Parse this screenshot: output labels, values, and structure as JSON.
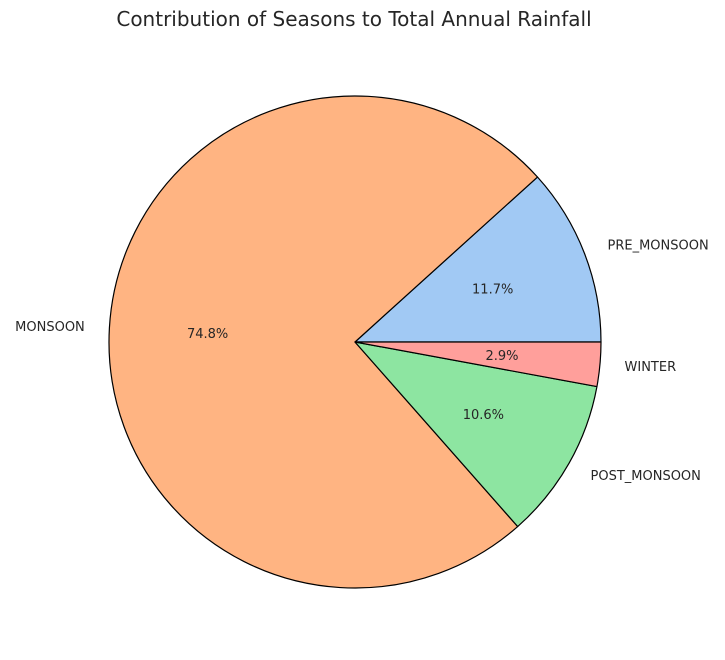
{
  "chart_data": {
    "type": "pie",
    "title": "Contribution of Seasons to Total Annual Rainfall",
    "slices": [
      {
        "label": "PRE_MONSOON",
        "value": 11.7,
        "pct_label": "11.7%",
        "color": "#a1c9f4"
      },
      {
        "label": "MONSOON",
        "value": 74.8,
        "pct_label": "74.8%",
        "color": "#ffb482"
      },
      {
        "label": "POST_MONSOON",
        "value": 10.6,
        "pct_label": "10.6%",
        "color": "#8de5a1"
      },
      {
        "label": "WINTER",
        "value": 2.9,
        "pct_label": "2.9%",
        "color": "#ff9f9b"
      }
    ],
    "start_angle_deg": 0,
    "direction": "counterclockwise",
    "edge_color": "#000000",
    "legend": "none"
  }
}
